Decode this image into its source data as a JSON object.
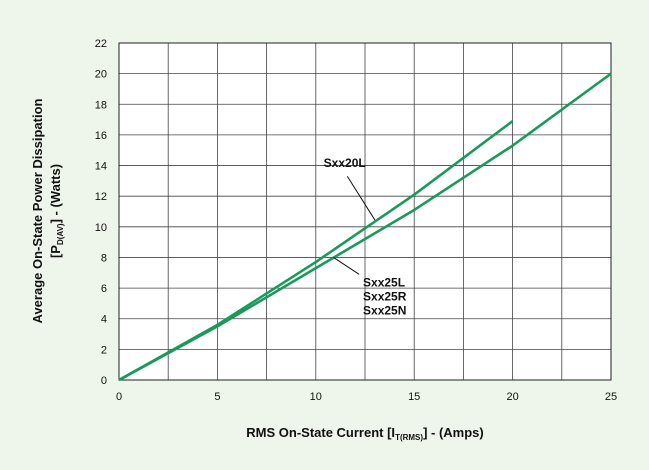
{
  "chart_data": {
    "type": "line",
    "xlabel_main": "RMS On-State Current [I",
    "xlabel_sub": "T(RMS)",
    "xlabel_tail": "] - (Amps)",
    "ylabel_line1": "Average On-State Power Dissipation",
    "ylabel_line2_pre": "[P",
    "ylabel_line2_sub": "D(AV)",
    "ylabel_line2_tail": "] - (Watts)",
    "xlim": [
      0,
      25
    ],
    "ylim": [
      0,
      22
    ],
    "xticks": [
      0,
      5,
      10,
      15,
      20,
      25
    ],
    "yticks": [
      0,
      2,
      4,
      6,
      8,
      10,
      12,
      14,
      16,
      18,
      20,
      22
    ],
    "grid": true,
    "series": [
      {
        "name": "Sxx20L",
        "x": [
          0,
          5,
          10,
          15,
          20
        ],
        "y": [
          0,
          3.6,
          7.7,
          12.1,
          16.9
        ]
      },
      {
        "name": "Sxx25L Sxx25R Sxx25N",
        "x": [
          0,
          5,
          10,
          15,
          20,
          25
        ],
        "y": [
          0,
          3.5,
          7.3,
          11.1,
          15.3,
          20.0
        ]
      }
    ],
    "annotations": [
      {
        "text": "Sxx20L",
        "lines": [
          "Sxx20L"
        ]
      },
      {
        "text": "Sxx25L Sxx25R Sxx25N",
        "lines": [
          "Sxx25L",
          "Sxx25R",
          "Sxx25N"
        ]
      }
    ],
    "colors": {
      "line": "#1a9a5a",
      "grid": "#444444",
      "plot_bg": "#ffffff",
      "page_bg": "#eef5ea"
    }
  }
}
